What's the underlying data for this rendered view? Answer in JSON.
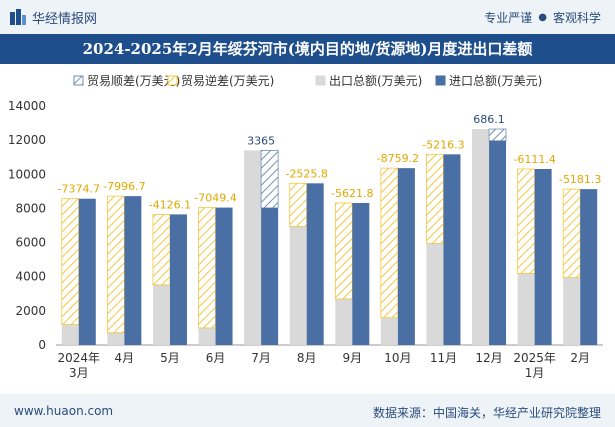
{
  "header": {
    "logo_text": "华经情报网",
    "tag1": "专业严谨",
    "tag_sep": "●",
    "tag2": "客观科学"
  },
  "title": "2024-2025年2月年绥芬河市(境内目的地/货源地)月度进出口差额",
  "footer": {
    "site": "www.huaon.com",
    "source": "数据来源：中国海关，华经产业研究院整理"
  },
  "colors": {
    "surplus": "#5a8fd0",
    "deficit": "#f2c744",
    "export": "#d9d9d9",
    "import": "#4a6fa5"
  },
  "chart_data": {
    "type": "bar",
    "categories": [
      "2024年3月",
      "4月",
      "5月",
      "6月",
      "7月",
      "8月",
      "9月",
      "10月",
      "11月",
      "12月",
      "2025年1月",
      "2月"
    ],
    "legend": [
      "贸易顺差(万美元)",
      "贸易逆差(万美元)",
      "出口总额(万美元)",
      "进口总额(万美元)"
    ],
    "export": [
      1200,
      720,
      3520,
      1000,
      11400,
      6950,
      2700,
      1600,
      5950,
      12650,
      4200,
      3950
    ],
    "import": [
      8570,
      8720,
      7650,
      8050,
      8030,
      9470,
      8320,
      10360,
      11170,
      11960,
      10310,
      9130
    ],
    "balance": [
      -7374.7,
      -7996.7,
      -4126.1,
      -7049.4,
      3365,
      -2525.8,
      -5621.8,
      -8759.2,
      -5216.3,
      686.1,
      -6111.4,
      -5181.3
    ],
    "balance_labels": [
      "-7374.7",
      "-7996.7",
      "-4126.1",
      "-7049.4",
      "3365",
      "-2525.8",
      "-5621.8",
      "-8759.2",
      "-5216.3",
      "686.1",
      "-6111.4",
      "-5181.3"
    ],
    "ylim": [
      0,
      14000
    ],
    "yticks": [
      0,
      2000,
      4000,
      6000,
      8000,
      10000,
      12000,
      14000
    ],
    "legend_position": "top",
    "grid": false
  }
}
